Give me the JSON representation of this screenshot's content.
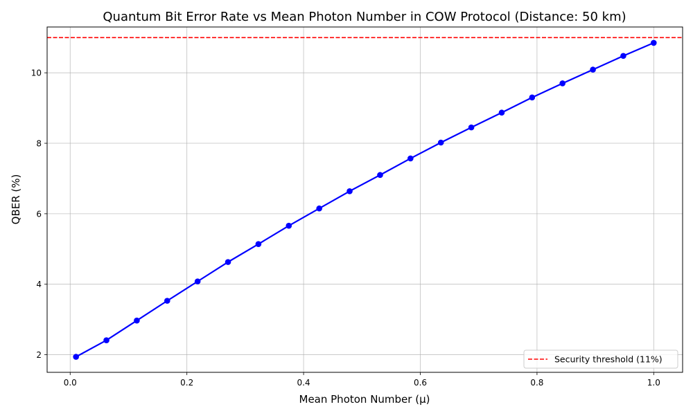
{
  "chart_data": {
    "type": "line",
    "title": "Quantum Bit Error Rate vs Mean Photon Number in COW Protocol (Distance: 50 km)",
    "xlabel": "Mean Photon Number (μ)",
    "ylabel": "QBER (%)",
    "xlim": [
      -0.0395,
      1.0495
    ],
    "ylim": [
      1.5,
      11.3
    ],
    "grid": true,
    "xticks": [
      0.0,
      0.2,
      0.4,
      0.6,
      0.8,
      1.0
    ],
    "xtick_labels": [
      "0.0",
      "0.2",
      "0.4",
      "0.6",
      "0.8",
      "1.0"
    ],
    "yticks": [
      2,
      4,
      6,
      8,
      10
    ],
    "ytick_labels": [
      "2",
      "4",
      "6",
      "8",
      "10"
    ],
    "series": [
      {
        "color": "#0000ff",
        "marker": "circle",
        "x": [
          0.01,
          0.0621,
          0.1142,
          0.1663,
          0.2184,
          0.2705,
          0.3226,
          0.3747,
          0.4268,
          0.4789,
          0.5311,
          0.5832,
          0.6353,
          0.6874,
          0.7395,
          0.7916,
          0.8437,
          0.8958,
          0.9479,
          1.0
        ],
        "values": [
          1.94,
          2.41,
          2.97,
          3.53,
          4.08,
          4.63,
          5.14,
          5.66,
          6.15,
          6.64,
          7.1,
          7.57,
          8.02,
          8.45,
          8.87,
          9.3,
          9.7,
          10.09,
          10.48,
          10.85
        ]
      }
    ],
    "reference_lines": [
      {
        "orientation": "horizontal",
        "value": 11,
        "color": "#ff0000",
        "style": "dashed",
        "name": "Security threshold (11%)"
      }
    ],
    "legend": {
      "placement": "bottom-right",
      "entries": [
        "Security threshold (11%)"
      ]
    }
  }
}
